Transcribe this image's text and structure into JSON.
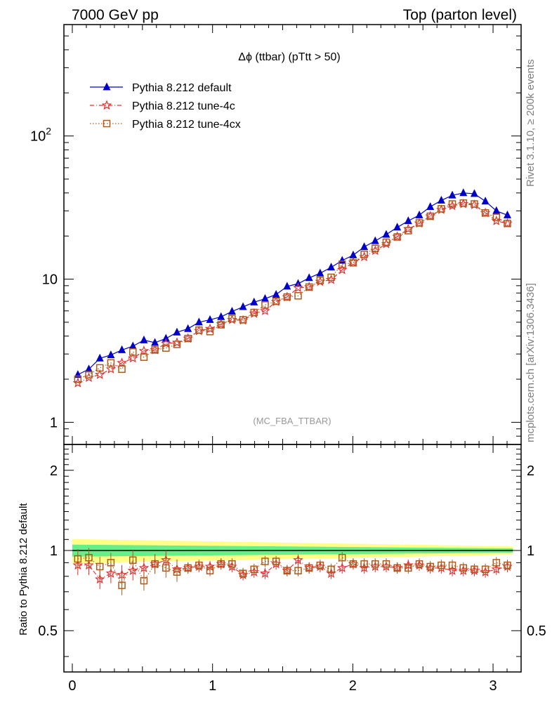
{
  "header": {
    "left": "7000 GeV pp",
    "right": "Top (parton level)"
  },
  "side_labels": {
    "top": "Rivet 3.1.10, ≥ 200k events",
    "bottom": "mcplots.cern.ch [arXiv:1306.3436]"
  },
  "chart_data": [
    {
      "panel": "main",
      "type": "line",
      "title": "Δϕ (ttbar) (pTtt > 50)",
      "watermark": "(MC_FBA_TTBAR)",
      "xlabel": "",
      "ylabel": "",
      "xlim": [
        -0.06,
        3.2
      ],
      "ylim": [
        0.7,
        600
      ],
      "yscale": "log",
      "grid": false,
      "legend_position": "top-left",
      "x_ticks": [
        "0",
        "1",
        "2",
        "3"
      ],
      "y_ticks": [
        {
          "value": 1,
          "label": "1"
        },
        {
          "value": 10,
          "label": "10"
        },
        {
          "value": 100,
          "label": "10",
          "sup": "2"
        }
      ],
      "x": [
        0.0393,
        0.1178,
        0.1963,
        0.2749,
        0.3534,
        0.432,
        0.5105,
        0.589,
        0.6676,
        0.7461,
        0.8247,
        0.9032,
        0.9817,
        1.0603,
        1.1388,
        1.2174,
        1.2959,
        1.3744,
        1.453,
        1.5315,
        1.6101,
        1.6886,
        1.7671,
        1.8457,
        1.9242,
        2.0028,
        2.0813,
        2.1598,
        2.2384,
        2.3169,
        2.3955,
        2.474,
        2.5525,
        2.6311,
        2.7096,
        2.7882,
        2.8667,
        2.9452,
        3.0238,
        3.1023
      ],
      "series": [
        {
          "name": "Pythia 8.212 default",
          "color": "#0000cc",
          "marker": "triangle",
          "linestyle": "solid",
          "values": [
            2.15,
            2.35,
            2.8,
            2.95,
            3.2,
            3.4,
            3.75,
            3.6,
            3.85,
            4.25,
            4.5,
            5.0,
            5.2,
            5.45,
            5.95,
            6.4,
            6.9,
            7.3,
            7.8,
            8.9,
            9.3,
            10.2,
            11.0,
            12.1,
            13.5,
            14.7,
            16.8,
            18.5,
            20.5,
            23.0,
            25.5,
            28.0,
            32.0,
            35.5,
            38.5,
            40.0,
            39.5,
            35.0,
            30.0,
            28.0
          ]
        },
        {
          "name": "Pythia 8.212 tune-4c",
          "color": "#e03030",
          "marker": "star",
          "linestyle": "dashdot",
          "values": [
            1.88,
            2.05,
            2.15,
            2.35,
            2.6,
            2.8,
            3.15,
            3.2,
            3.55,
            3.6,
            3.85,
            4.35,
            4.5,
            4.85,
            5.2,
            5.15,
            5.75,
            6.0,
            6.95,
            7.5,
            8.7,
            8.8,
            9.6,
            9.9,
            11.6,
            13.1,
            14.3,
            15.8,
            17.6,
            19.8,
            22.4,
            24.5,
            27.5,
            30.5,
            32.5,
            33.5,
            33.0,
            29.0,
            25.5,
            24.5
          ]
        },
        {
          "name": "Pythia 8.212 tune-4cx",
          "color": "#b05a1a",
          "marker": "square",
          "linestyle": "dotted",
          "values": [
            2.0,
            2.15,
            2.4,
            2.6,
            2.35,
            3.1,
            2.85,
            3.2,
            3.3,
            3.5,
            3.85,
            4.4,
            4.3,
            4.8,
            5.3,
            5.2,
            5.85,
            6.6,
            7.0,
            7.5,
            7.65,
            8.8,
            9.8,
            10.3,
            12.7,
            13.0,
            14.9,
            16.4,
            18.1,
            19.7,
            21.8,
            24.7,
            27.5,
            31.0,
            33.5,
            34.0,
            33.5,
            29.0,
            27.0,
            24.5
          ]
        }
      ]
    },
    {
      "panel": "ratio",
      "type": "line",
      "ylabel": "Ratio to Pythia 8.212 default",
      "xlim": [
        -0.06,
        3.2
      ],
      "ylim": [
        0.35,
        2.5
      ],
      "yscale": "log",
      "grid": false,
      "x_ticks": [
        "0",
        "1",
        "2",
        "3"
      ],
      "y_ticks": [
        {
          "value": 0.5,
          "label": "0.5"
        },
        {
          "value": 1,
          "label": "1"
        },
        {
          "value": 2,
          "label": "2"
        }
      ],
      "reference": 1.0,
      "band_inner_halfwidth": 0.04,
      "band_outer_halfwidth": 0.065,
      "band_colors": [
        "#ffff88",
        "#66ee88"
      ],
      "series": [
        {
          "name": "Pythia 8.212 tune-4c",
          "color": "#e03030",
          "marker": "star",
          "values": [
            0.88,
            0.88,
            0.78,
            0.82,
            0.81,
            0.84,
            0.86,
            0.89,
            0.92,
            0.85,
            0.86,
            0.87,
            0.87,
            0.89,
            0.87,
            0.81,
            0.83,
            0.82,
            0.89,
            0.84,
            0.92,
            0.86,
            0.87,
            0.82,
            0.86,
            0.89,
            0.86,
            0.87,
            0.87,
            0.86,
            0.88,
            0.88,
            0.86,
            0.86,
            0.84,
            0.84,
            0.84,
            0.83,
            0.85,
            0.87
          ]
        },
        {
          "name": "Pythia 8.212 tune-4cx",
          "color": "#b05a1a",
          "marker": "square",
          "values": [
            0.93,
            0.94,
            0.87,
            0.9,
            0.74,
            0.92,
            0.77,
            0.89,
            0.86,
            0.83,
            0.86,
            0.88,
            0.84,
            0.89,
            0.89,
            0.82,
            0.85,
            0.91,
            0.91,
            0.84,
            0.84,
            0.86,
            0.88,
            0.85,
            0.94,
            0.89,
            0.89,
            0.89,
            0.89,
            0.86,
            0.86,
            0.89,
            0.87,
            0.88,
            0.88,
            0.86,
            0.85,
            0.85,
            0.9,
            0.88
          ]
        }
      ]
    }
  ]
}
